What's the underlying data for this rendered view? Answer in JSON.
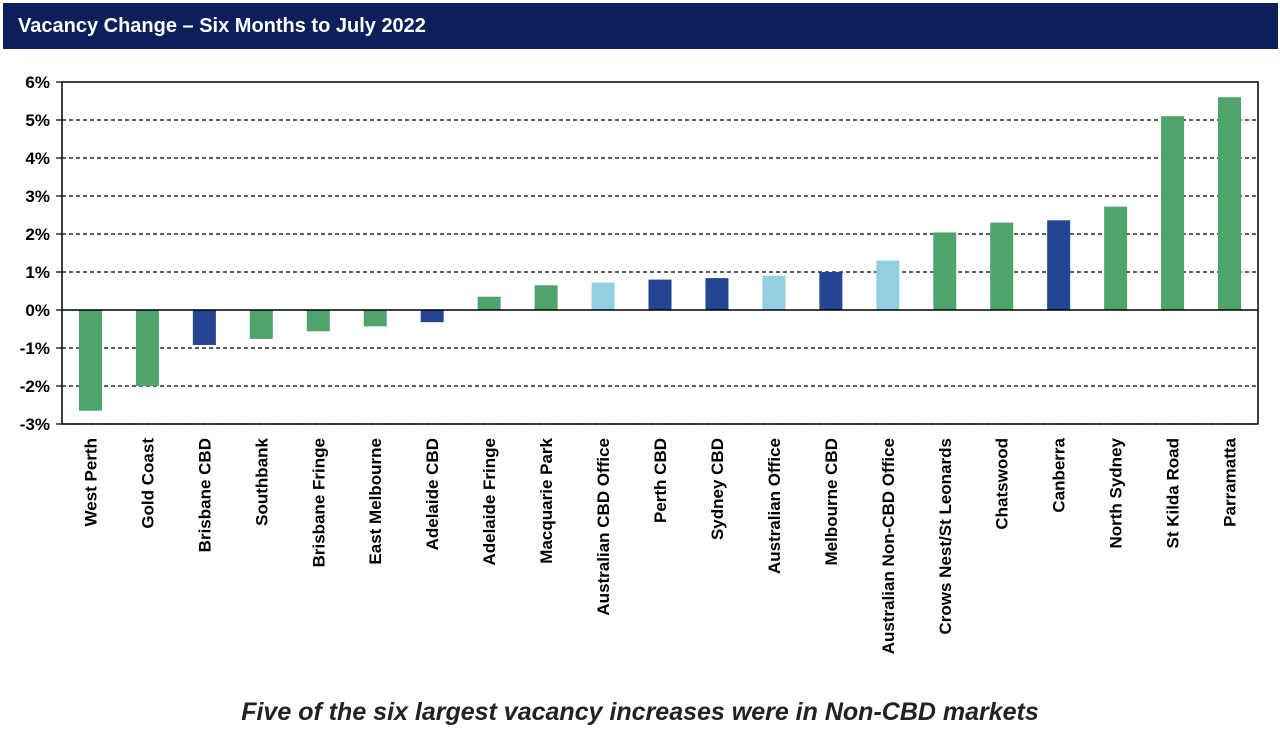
{
  "header": {
    "title": "Vacancy Change – Six Months to July 2022"
  },
  "caption": "Five of the six largest vacancy increases were in Non-CBD markets",
  "colors": {
    "header_bg": "#0c1f5b",
    "non_cbd": "#4ea46a",
    "cbd": "#234592",
    "aggregate": "#92cfe0"
  },
  "chart_data": {
    "type": "bar",
    "title": "Vacancy Change – Six Months to July 2022",
    "xlabel": "",
    "ylabel": "",
    "ylim": [
      -3,
      6
    ],
    "yticks": [
      -3,
      -2,
      -1,
      0,
      1,
      2,
      3,
      4,
      5,
      6
    ],
    "ytick_labels": [
      "-3%",
      "-2%",
      "-1%",
      "0%",
      "1%",
      "2%",
      "3%",
      "4%",
      "5%",
      "6%"
    ],
    "grid": "horizontal dashed",
    "legend": "none",
    "categories": [
      "West Perth",
      "Gold Coast",
      "Brisbane CBD",
      "Southbank",
      "Brisbane Fringe",
      "East Melbourne",
      "Adelaide CBD",
      "Adelaide Fringe",
      "Macquarie Park",
      "Australian CBD Office",
      "Perth CBD",
      "Sydney CBD",
      "Australian Office",
      "Melbourne CBD",
      "Australian Non-CBD Office",
      "Crows Nest/St Leonards",
      "Chatswood",
      "Canberra",
      "North Sydney",
      "St Kilda Road",
      "Parramatta"
    ],
    "values": [
      -2.65,
      -2.0,
      -0.92,
      -0.76,
      -0.56,
      -0.43,
      -0.32,
      0.35,
      0.65,
      0.72,
      0.8,
      0.84,
      0.9,
      1.0,
      1.3,
      2.04,
      2.3,
      2.36,
      2.72,
      5.1,
      5.6
    ],
    "bar_groups": [
      "non_cbd",
      "non_cbd",
      "cbd",
      "non_cbd",
      "non_cbd",
      "non_cbd",
      "cbd",
      "non_cbd",
      "non_cbd",
      "aggregate",
      "cbd",
      "cbd",
      "aggregate",
      "cbd",
      "aggregate",
      "non_cbd",
      "non_cbd",
      "cbd",
      "non_cbd",
      "non_cbd",
      "non_cbd"
    ]
  }
}
